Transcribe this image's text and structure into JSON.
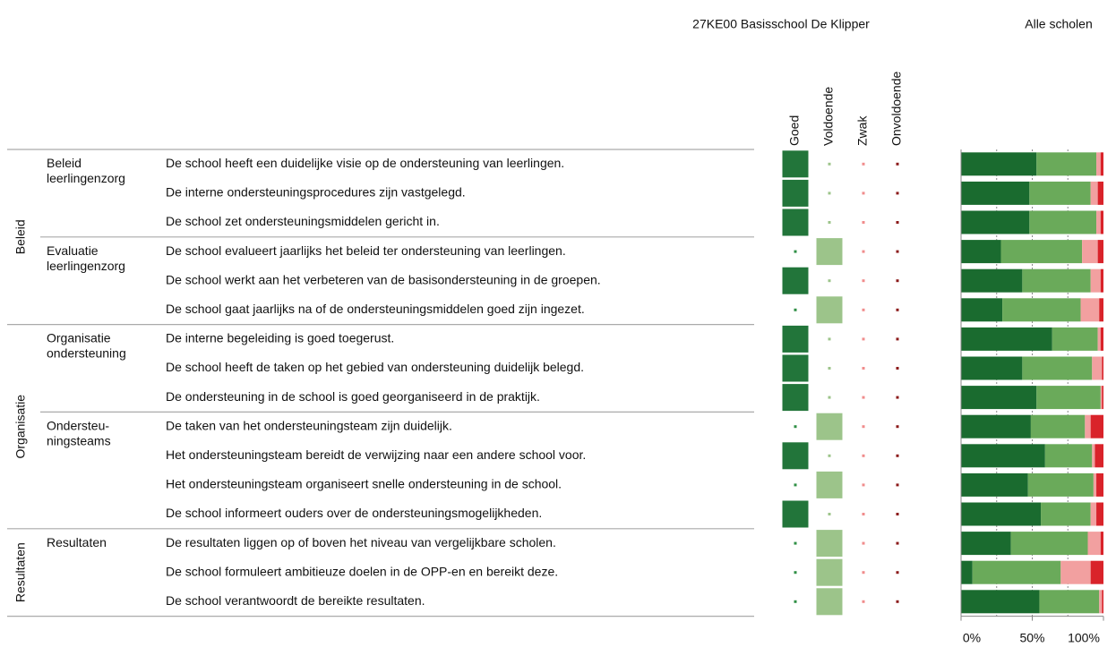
{
  "header": {
    "school": "27KE00 Basisschool De Klipper",
    "all": "Alle scholen"
  },
  "columns": [
    "Goed",
    "Voldoende",
    "Zwak",
    "Onvoldoende"
  ],
  "cell_colors": [
    "#22753a",
    "#9cc48a",
    "#f2a3a3",
    "#8b1a1a"
  ],
  "dot_colors": [
    "#2f8f45",
    "#9cc48a",
    "#f08c8c",
    "#8b1a1a"
  ],
  "groups": [
    {
      "name": "Beleid",
      "subgroups": [
        {
          "name": [
            "Beleid",
            "leerlingenzorg"
          ],
          "items": [
            {
              "text": "De school heeft een duidelijke visie op de ondersteuning van leerlingen.",
              "scores": [
                1,
                0,
                0,
                0
              ]
            },
            {
              "text": "De interne ondersteuningsprocedures zijn vastgelegd.",
              "scores": [
                1,
                0,
                0,
                0
              ]
            },
            {
              "text": "De school zet ondersteuningsmiddelen gericht in.",
              "scores": [
                1,
                0,
                0,
                0
              ]
            }
          ]
        },
        {
          "name": [
            "Evaluatie",
            "leerlingenzorg"
          ],
          "items": [
            {
              "text": "De school evalueert jaarlijks het beleid ter ondersteuning van leerlingen.",
              "scores": [
                0,
                1,
                0,
                0
              ]
            },
            {
              "text": "De school werkt aan het verbeteren van de basisondersteuning in de groepen.",
              "scores": [
                1,
                0,
                0,
                0
              ]
            },
            {
              "text": "De school gaat jaarlijks na of de ondersteuningsmiddelen goed zijn ingezet.",
              "scores": [
                0,
                1,
                0,
                0
              ]
            }
          ]
        }
      ]
    },
    {
      "name": "Organisatie",
      "subgroups": [
        {
          "name": [
            "Organisatie",
            "ondersteuning"
          ],
          "items": [
            {
              "text": "De interne begeleiding is goed toegerust.",
              "scores": [
                1,
                0,
                0,
                0
              ]
            },
            {
              "text": "De school heeft de taken op het gebied van ondersteuning duidelijk belegd.",
              "scores": [
                1,
                0,
                0,
                0
              ]
            },
            {
              "text": "De ondersteuning in de school is goed georganiseerd in de praktijk.",
              "scores": [
                1,
                0,
                0,
                0
              ]
            }
          ]
        },
        {
          "name": [
            "Ondersteu-",
            "ningsteams"
          ],
          "items": [
            {
              "text": "De taken van het ondersteuningsteam zijn duidelijk.",
              "scores": [
                0,
                1,
                0,
                0
              ]
            },
            {
              "text": "Het ondersteuningsteam bereidt de verwijzing naar een andere school voor.",
              "scores": [
                1,
                0,
                0,
                0
              ]
            },
            {
              "text": "Het ondersteuningsteam organiseert snelle ondersteuning in de school.",
              "scores": [
                0,
                1,
                0,
                0
              ]
            },
            {
              "text": "De school informeert ouders over de ondersteuningsmogelijkheden.",
              "scores": [
                1,
                0,
                0,
                0
              ]
            }
          ]
        }
      ]
    },
    {
      "name": "Resultaten",
      "subgroups": [
        {
          "name": [
            "Resultaten"
          ],
          "items": [
            {
              "text": "De resultaten liggen op of boven het niveau van vergelijkbare scholen.",
              "scores": [
                0,
                1,
                0,
                0
              ]
            },
            {
              "text": "De school formuleert ambitieuze doelen in de OPP-en en bereikt deze.",
              "scores": [
                0,
                1,
                0,
                0
              ]
            },
            {
              "text": "De school verantwoordt de bereikte resultaten.",
              "scores": [
                0,
                1,
                0,
                0
              ]
            }
          ]
        }
      ]
    }
  ],
  "chart_data": {
    "type": "bar",
    "orientation": "horizontal",
    "stacked": true,
    "series": [
      {
        "color": "#1a6b2f",
        "values": [
          53,
          48,
          48,
          28,
          43,
          29,
          64,
          43,
          53,
          49,
          59,
          47,
          56,
          35,
          8,
          55
        ]
      },
      {
        "color": "#6aaa5a",
        "values": [
          42,
          43,
          47,
          57,
          48,
          55,
          32,
          49,
          45,
          38,
          33,
          46,
          35,
          54,
          62,
          42
        ]
      },
      {
        "color": "#f2a0a0",
        "values": [
          3,
          5,
          3,
          11,
          7,
          13,
          2,
          7,
          1,
          4,
          2,
          2,
          4,
          9,
          21,
          2
        ]
      },
      {
        "color": "#d9232a",
        "values": [
          2,
          4,
          2,
          4,
          2,
          3,
          2,
          1,
          1,
          9,
          6,
          5,
          5,
          2,
          9,
          1
        ]
      }
    ],
    "xlim": [
      0,
      100
    ],
    "xticks": [
      {
        "value": 0,
        "label": "0%"
      },
      {
        "value": 50,
        "label": "50%"
      },
      {
        "value": 100,
        "label": "100%"
      }
    ],
    "gridlines": [
      25,
      50,
      75
    ]
  }
}
